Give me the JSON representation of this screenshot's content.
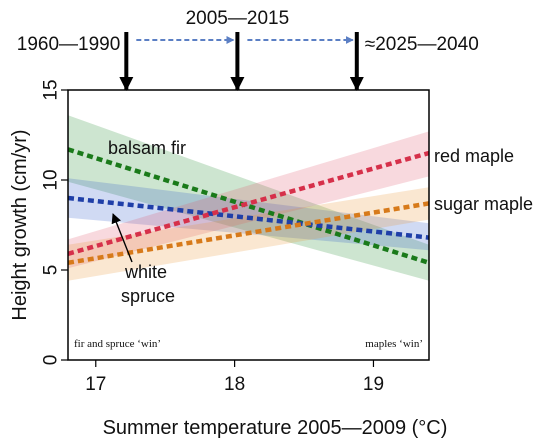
{
  "chart_data": {
    "type": "line",
    "title": "",
    "xlabel": "Summer temperature 2005—2009 (°C)",
    "ylabel": "Height growth (cm/yr)",
    "xlim": [
      16.8,
      19.4
    ],
    "ylim": [
      0,
      15
    ],
    "x_ticks": [
      "17",
      "18",
      "19"
    ],
    "y_ticks": [
      "0",
      "5",
      "10",
      "15"
    ],
    "grid": false,
    "series": [
      {
        "name": "balsam fir",
        "color": "#1a7a1a",
        "band_color": "#1a8a2a",
        "x": [
          16.8,
          19.4
        ],
        "values": [
          11.7,
          5.4
        ],
        "band_lower": [
          9.9,
          4.4
        ],
        "band_upper": [
          13.6,
          6.4
        ]
      },
      {
        "name": "white spruce",
        "color": "#1f3fa8",
        "band_color": "#2a55c8",
        "x": [
          16.8,
          19.4
        ],
        "values": [
          9.0,
          6.8
        ],
        "band_lower": [
          7.9,
          6.1
        ],
        "band_upper": [
          10.1,
          7.6
        ]
      },
      {
        "name": "red maple",
        "color": "#d6304a",
        "band_color": "#e0506a",
        "x": [
          16.8,
          19.4
        ],
        "values": [
          5.9,
          11.5
        ],
        "band_lower": [
          5.1,
          10.2
        ],
        "band_upper": [
          6.7,
          12.7
        ]
      },
      {
        "name": "sugar maple",
        "color": "#d77a1a",
        "band_color": "#e6922e",
        "x": [
          16.8,
          19.4
        ],
        "values": [
          5.4,
          8.7
        ],
        "band_lower": [
          4.4,
          7.8
        ],
        "band_upper": [
          6.4,
          9.6
        ]
      }
    ],
    "series_labels": {
      "balsam_fir": "balsam fir",
      "white_spruce_line1": "white",
      "white_spruce_line2": "spruce",
      "red_maple": "red maple",
      "sugar_maple": "sugar maple"
    },
    "periods": [
      {
        "label": "1960—1990",
        "x": 17.22
      },
      {
        "label": "2005—2015",
        "x": 18.02
      },
      {
        "label": "≈2025—2040",
        "x": 18.88
      }
    ],
    "annotations": {
      "left": "fir and spruce ‘win’",
      "right": "maples ‘win’"
    }
  }
}
